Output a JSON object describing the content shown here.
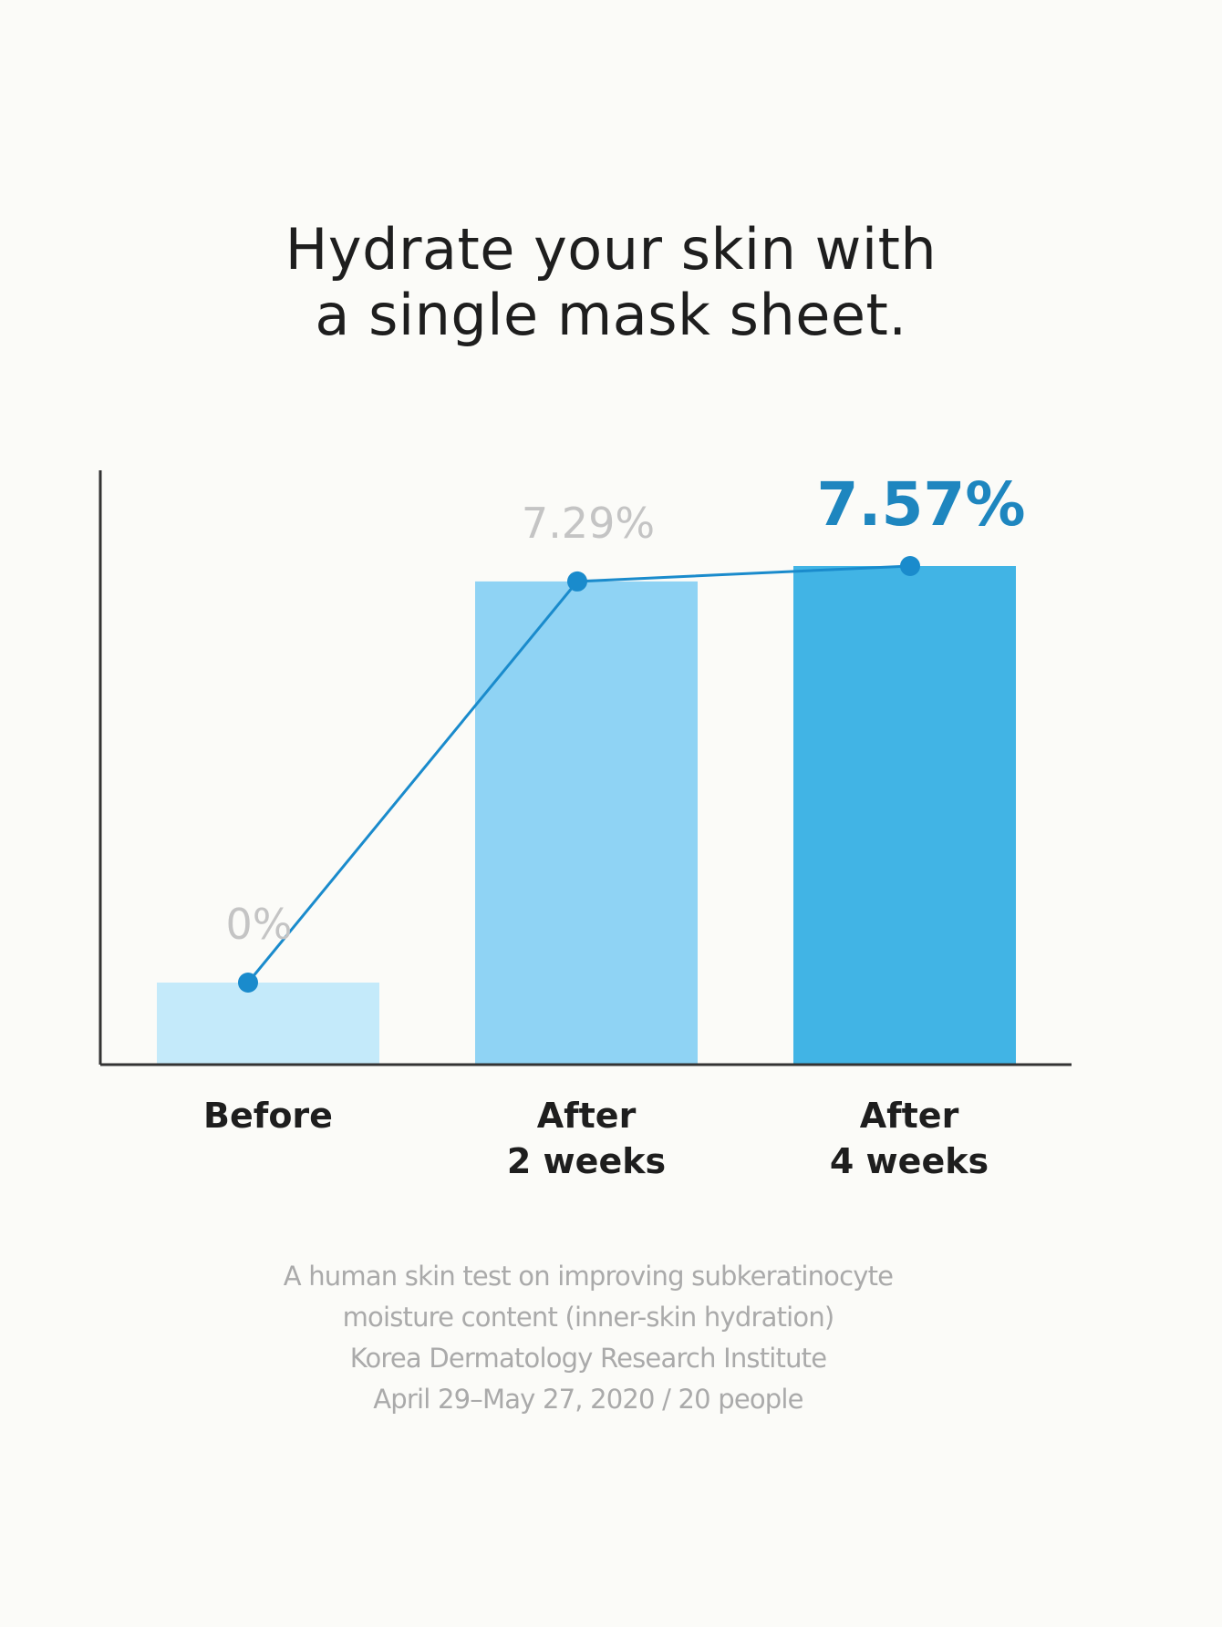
{
  "title_lines": [
    "Hydrate your skin with",
    "a single mask sheet."
  ],
  "chart_data": {
    "type": "bar",
    "title": "Hydrate your skin with a single mask sheet.",
    "categories": [
      [
        "Before"
      ],
      [
        "After",
        "2 weeks"
      ],
      [
        "After",
        "4 weeks"
      ]
    ],
    "values": [
      0,
      7.29,
      7.57
    ],
    "value_labels": [
      "0%",
      "7.29%",
      "7.57%"
    ],
    "overlay_line": true,
    "grid": false,
    "xlabel": "",
    "ylabel": "",
    "colors": {
      "bars": [
        "#c4eafa",
        "#8fd3f4",
        "#41b4e5"
      ],
      "line": "#1a8bcc",
      "label_muted": "#c4c4c4",
      "label_highlight": "#1e86bf",
      "axis": "#333333"
    }
  },
  "footnote": [
    "A human skin test on improving subkeratinocyte",
    "moisture content (inner-skin hydration)",
    "Korea Dermatology Research Institute",
    "April 29–May 27, 2020 / 20 people"
  ]
}
